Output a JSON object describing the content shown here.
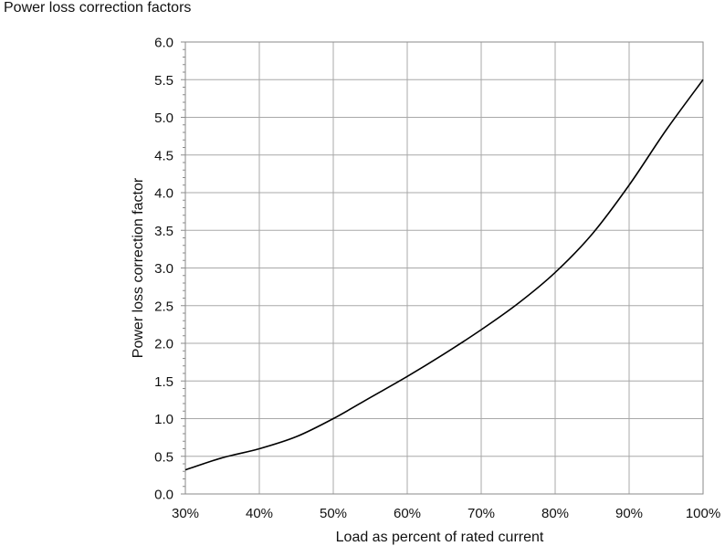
{
  "chart_data": {
    "type": "line",
    "title": "Power loss correction factors",
    "xlabel": "Load as percent of rated  current",
    "ylabel": "Power loss correction factor",
    "xlim": [
      30,
      100
    ],
    "ylim": [
      0,
      6
    ],
    "grid": true,
    "x_ticks": [
      30,
      40,
      50,
      60,
      70,
      80,
      90,
      100
    ],
    "x_tick_labels": [
      "30%",
      "40%",
      "50%",
      "60%",
      "70%",
      "80%",
      "90%",
      "100%"
    ],
    "y_ticks": [
      0,
      0.5,
      1,
      1.5,
      2,
      2.5,
      3,
      3.5,
      4,
      4.5,
      5,
      5.5,
      6
    ],
    "y_tick_labels": [
      "0.0",
      "0.5",
      "1.0",
      "1.5",
      "2.0",
      "2.5",
      "3.0",
      "3.5",
      "4.0",
      "4.5",
      "5.0",
      "5.5",
      "6.0"
    ],
    "series": [
      {
        "x": [
          30,
          35,
          40,
          45,
          50,
          55,
          60,
          65,
          70,
          75,
          80,
          85,
          90,
          95,
          100
        ],
        "y": [
          0.32,
          0.48,
          0.6,
          0.76,
          1.0,
          1.28,
          1.56,
          1.86,
          2.18,
          2.53,
          2.94,
          3.45,
          4.1,
          4.83,
          5.5
        ]
      }
    ]
  }
}
